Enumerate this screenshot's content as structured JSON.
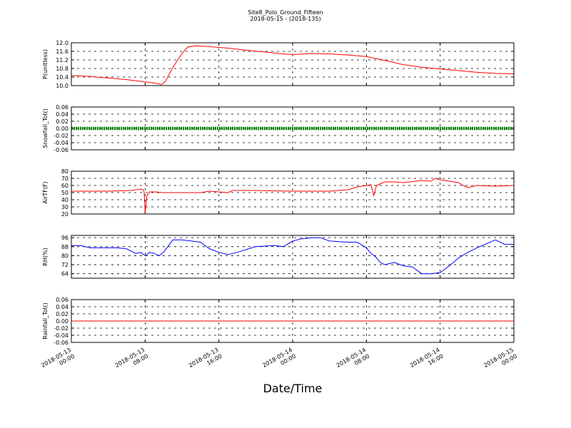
{
  "title": "Site8_Polo_Ground_Fifteen",
  "subtitle": "2018-05-15 - (2018-135)",
  "xlabel": "Date/Time",
  "x_ticks": [
    {
      "line1": "2018-05-13",
      "line2": "00:00",
      "h": 0
    },
    {
      "line1": "2018-05-13",
      "line2": "08:00",
      "h": 8
    },
    {
      "line1": "2018-05-13",
      "line2": "16:00",
      "h": 16
    },
    {
      "line1": "2018-05-14",
      "line2": "00:00",
      "h": 24
    },
    {
      "line1": "2018-05-14",
      "line2": "08:00",
      "h": 32
    },
    {
      "line1": "2018-05-14",
      "line2": "16:00",
      "h": 40
    },
    {
      "line1": "2018-05-15",
      "line2": "00:00",
      "h": 48
    }
  ],
  "chart_data": [
    {
      "type": "line",
      "ylabel": "P(unitless)",
      "ylim": [
        10.0,
        12.0
      ],
      "yticks": [
        "10.0",
        "10.4",
        "10.8",
        "11.2",
        "11.6",
        "12.0"
      ],
      "grid": true,
      "series": [
        {
          "color": "#ff0000",
          "points": [
            [
              0,
              10.47
            ],
            [
              2,
              10.43
            ],
            [
              4,
              10.36
            ],
            [
              6,
              10.28
            ],
            [
              8,
              10.17
            ],
            [
              9,
              10.12
            ],
            [
              9.8,
              10.05
            ],
            [
              10.2,
              10.2
            ],
            [
              11,
              10.85
            ],
            [
              12,
              11.5
            ],
            [
              12.6,
              11.8
            ],
            [
              13.5,
              11.86
            ],
            [
              15,
              11.82
            ],
            [
              17,
              11.75
            ],
            [
              19,
              11.65
            ],
            [
              21,
              11.57
            ],
            [
              23,
              11.48
            ],
            [
              24,
              11.45
            ],
            [
              26,
              11.5
            ],
            [
              28,
              11.48
            ],
            [
              30,
              11.43
            ],
            [
              32,
              11.36
            ],
            [
              34,
              11.18
            ],
            [
              36,
              10.98
            ],
            [
              38,
              10.86
            ],
            [
              40,
              10.78
            ],
            [
              42,
              10.7
            ],
            [
              44,
              10.62
            ],
            [
              46,
              10.57
            ],
            [
              48,
              10.55
            ]
          ]
        }
      ]
    },
    {
      "type": "line",
      "ylabel": "Snowfall_Tot()",
      "ylim": [
        -0.06,
        0.06
      ],
      "yticks": [
        "-0.06",
        "-0.04",
        "-0.02",
        "0.00",
        "0.02",
        "0.04",
        "0.06"
      ],
      "grid": true,
      "series": [
        {
          "color": "#008000",
          "marker": "dot",
          "points": [
            [
              0,
              0
            ],
            [
              48,
              0
            ]
          ]
        }
      ]
    },
    {
      "type": "line",
      "ylabel": "AirTF(F)",
      "ylim": [
        20,
        80
      ],
      "yticks": [
        "20",
        "30",
        "40",
        "50",
        "60",
        "70",
        "80"
      ],
      "grid": true,
      "series": [
        {
          "color": "#ff0000",
          "points": [
            [
              0,
              52
            ],
            [
              4,
              52
            ],
            [
              6.5,
              53
            ],
            [
              7.5,
              55
            ],
            [
              7.8,
              54
            ],
            [
              7.9,
              50
            ],
            [
              8.0,
              22
            ],
            [
              8.2,
              46
            ],
            [
              8.5,
              51
            ],
            [
              9,
              51
            ],
            [
              10,
              50
            ],
            [
              12,
              50
            ],
            [
              14,
              50
            ],
            [
              15,
              52
            ],
            [
              16,
              51
            ],
            [
              17,
              50
            ],
            [
              17.5,
              53
            ],
            [
              20,
              53
            ],
            [
              24,
              52
            ],
            [
              28,
              52
            ],
            [
              29,
              53
            ],
            [
              30,
              54
            ],
            [
              31,
              58
            ],
            [
              32,
              60
            ],
            [
              32.5,
              61
            ],
            [
              32.8,
              46
            ],
            [
              33.1,
              60
            ],
            [
              34,
              65
            ],
            [
              35,
              65
            ],
            [
              36,
              64
            ],
            [
              38,
              67
            ],
            [
              39,
              66
            ],
            [
              39.5,
              70
            ],
            [
              40,
              68
            ],
            [
              41,
              66
            ],
            [
              42,
              64
            ],
            [
              42.5,
              60
            ],
            [
              43,
              57
            ],
            [
              44,
              60
            ],
            [
              46,
              59
            ],
            [
              48,
              60
            ]
          ]
        }
      ]
    },
    {
      "type": "line",
      "ylabel": "RH(%)",
      "ylim": [
        60,
        98
      ],
      "yticks": [
        "64",
        "72",
        "80",
        "88",
        "96"
      ],
      "grid": true,
      "series": [
        {
          "color": "#0000ff",
          "points": [
            [
              0,
              89
            ],
            [
              1,
              89
            ],
            [
              2,
              87
            ],
            [
              3,
              87
            ],
            [
              4,
              87
            ],
            [
              5,
              87
            ],
            [
              6,
              86
            ],
            [
              7,
              82
            ],
            [
              7.5,
              83
            ],
            [
              8,
              80
            ],
            [
              8.5,
              83
            ],
            [
              9,
              82
            ],
            [
              9.5,
              80
            ],
            [
              10,
              83
            ],
            [
              11,
              94
            ],
            [
              12,
              94
            ],
            [
              13,
              93
            ],
            [
              14,
              92
            ],
            [
              15,
              86
            ],
            [
              16,
              83
            ],
            [
              17,
              81
            ],
            [
              18,
              83
            ],
            [
              20,
              88
            ],
            [
              22,
              89
            ],
            [
              23,
              88
            ],
            [
              24,
              93
            ],
            [
              25,
              95
            ],
            [
              26,
              96
            ],
            [
              27,
              96
            ],
            [
              28,
              93
            ],
            [
              30,
              92
            ],
            [
              31,
              92
            ],
            [
              32,
              87
            ],
            [
              32.5,
              82
            ],
            [
              33,
              79
            ],
            [
              33.5,
              74
            ],
            [
              34,
              72
            ],
            [
              35,
              74
            ],
            [
              36,
              71
            ],
            [
              37,
              70
            ],
            [
              38,
              64
            ],
            [
              39,
              64
            ],
            [
              40,
              65
            ],
            [
              41,
              71
            ],
            [
              42,
              78
            ],
            [
              43,
              83
            ],
            [
              44,
              87
            ],
            [
              46,
              94
            ],
            [
              47,
              90
            ],
            [
              48,
              90
            ]
          ]
        }
      ]
    },
    {
      "type": "line",
      "ylabel": "Rainfall_Tot()",
      "ylim": [
        -0.06,
        0.06
      ],
      "yticks": [
        "-0.06",
        "-0.04",
        "-0.02",
        "0.00",
        "0.02",
        "0.04",
        "0.06"
      ],
      "grid": true,
      "series": [
        {
          "color": "#ff0000",
          "points": [
            [
              0,
              0
            ],
            [
              48,
              0
            ]
          ]
        }
      ]
    }
  ]
}
